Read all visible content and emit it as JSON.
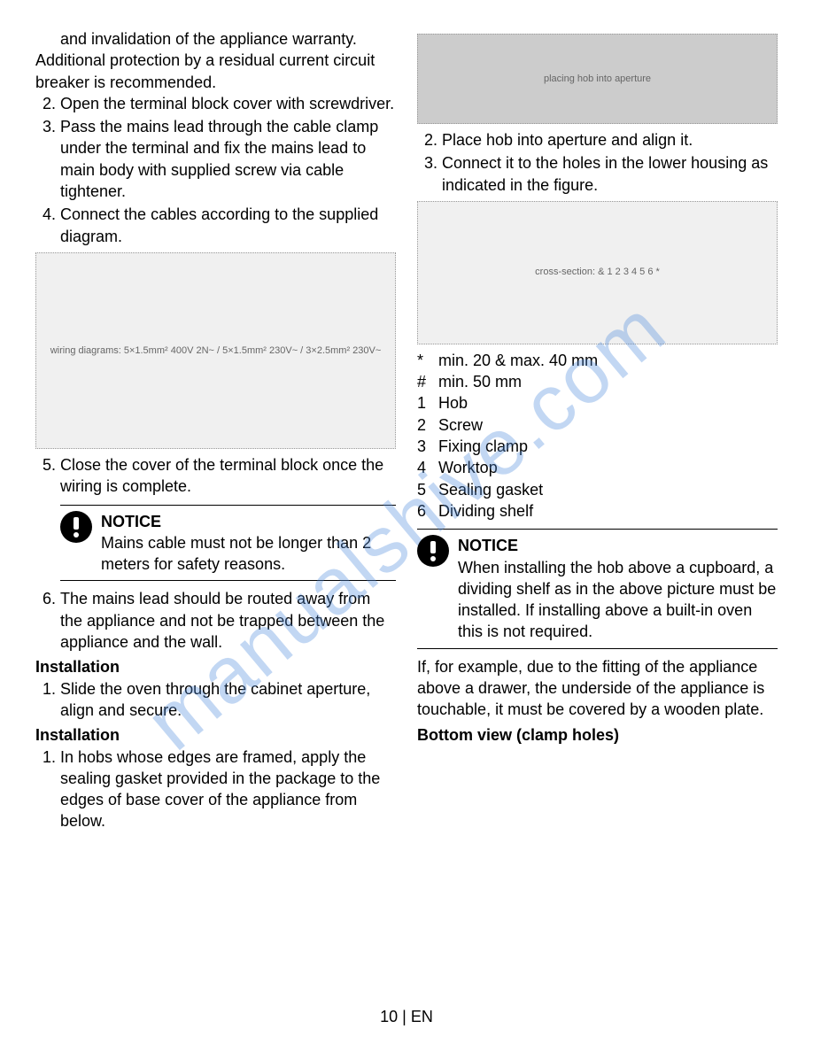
{
  "watermark": "manualshive.com",
  "footer": "10 | EN",
  "left": {
    "introTail": "and invalidation of the appliance warranty.",
    "introExtra": "Additional protection by a residual current circuit breaker is recommended.",
    "step2": "Open the terminal block cover with screwdriver.",
    "step3": "Pass the mains lead through the cable clamp under the terminal and fix the mains lead to main body with supplied screw via cable tightener.",
    "step4": "Connect the cables according to the supplied diagram.",
    "wiringFigAlt": "wiring diagrams: 5×1.5mm² 400V 2N~ / 5×1.5mm² 230V~ / 3×2.5mm² 230V~",
    "step5": "Close the cover of the terminal block once the wiring is complete.",
    "notice1Title": "NOTICE",
    "notice1Body": "Mains cable must not be longer than 2 meters for safety reasons.",
    "step6": "The mains lead should be routed away from the appliance and not be trapped between the appliance and the wall.",
    "installA": "Installation",
    "installAStep1": "Slide the oven through the cabinet aperture, align and secure.",
    "installB": "Installation",
    "installBStep1": "In hobs whose edges are framed, apply the sealing gasket provided in the package to the edges of base cover of the appliance from below."
  },
  "right": {
    "photoAlt": "placing hob into aperture",
    "step2": "Place hob into aperture and align it.",
    "step3": "Connect it to the holes in the lower housing as indicated in the figure.",
    "crossFigAlt": "cross-section: & 1 2 3 4 5 6 *",
    "legend": [
      {
        "k": "*",
        "v": "min. 20 & max. 40 mm"
      },
      {
        "k": "#",
        "v": "min. 50 mm"
      },
      {
        "k": "1",
        "v": "Hob"
      },
      {
        "k": "2",
        "v": "Screw"
      },
      {
        "k": "3",
        "v": "Fixing clamp"
      },
      {
        "k": "4",
        "v": "Worktop"
      },
      {
        "k": "5",
        "v": "Sealing gasket"
      },
      {
        "k": "6",
        "v": "Dividing shelf"
      }
    ],
    "notice2Title": "NOTICE",
    "notice2Body": "When installing the hob above a cupboard, a dividing shelf as in the above picture must be installed. If installing above a built-in oven this is not required.",
    "paraAfter": "If, for example, due to the fitting of the appliance above a drawer, the underside of the appliance is touchable, it must be covered by a wooden plate.",
    "bottomView": "Bottom view (clamp holes)"
  }
}
